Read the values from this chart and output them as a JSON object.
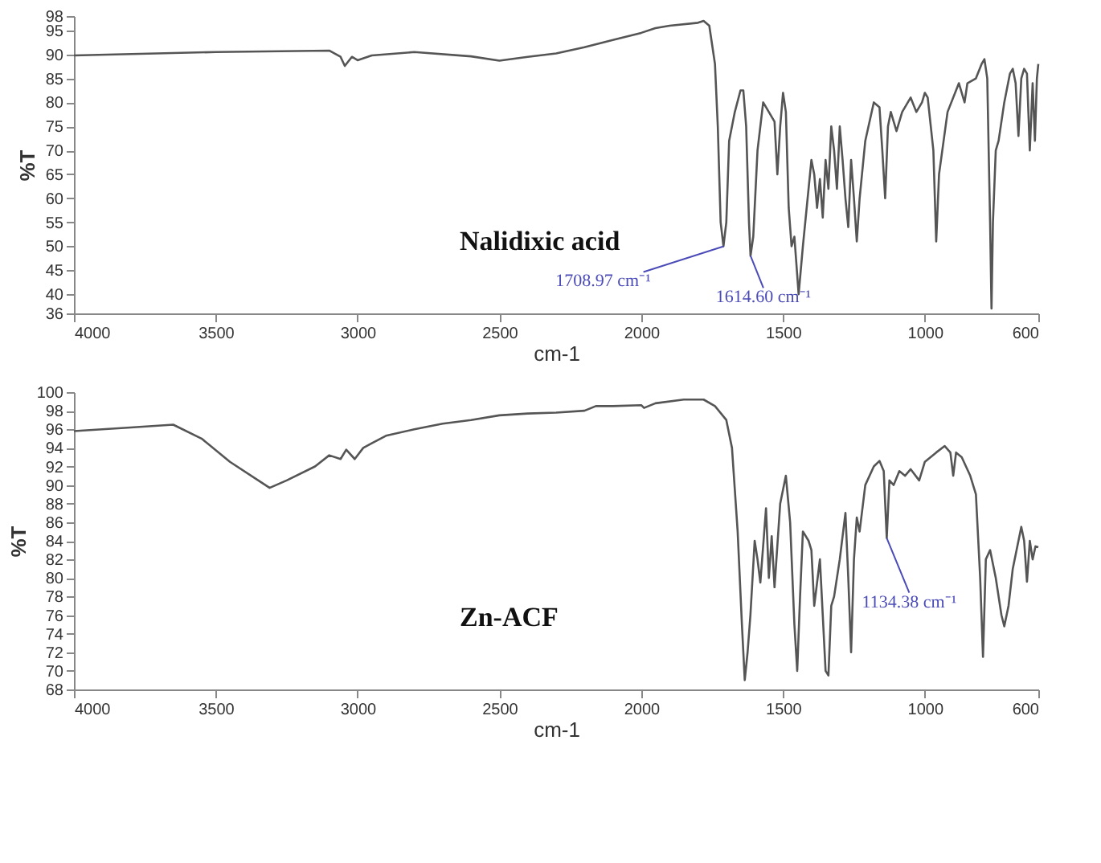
{
  "chart_data": [
    {
      "type": "line",
      "xlabel": "cm-1",
      "ylabel": "%T",
      "xlim": [
        4000,
        600
      ],
      "ylim": [
        36,
        98
      ],
      "xticks": [
        4000,
        3500,
        3000,
        2500,
        2000,
        1500,
        1000,
        600
      ],
      "yticks": [
        36,
        40,
        45,
        50,
        55,
        60,
        65,
        70,
        75,
        80,
        85,
        90,
        95,
        98
      ],
      "grid": false,
      "marker": "none",
      "line_style": "solid",
      "annotations": [
        {
          "text": "1708.97 cm⁻¹",
          "x": 1708.97,
          "y": 50
        },
        {
          "text": "1614.60 cm⁻¹",
          "x": 1614.6,
          "y": 48
        }
      ],
      "series": [
        {
          "name": "Nalidixic acid",
          "color": "#555555",
          "x": [
            4000,
            3500,
            3100,
            3060,
            3045,
            3020,
            3000,
            2950,
            2800,
            2600,
            2500,
            2400,
            2300,
            2200,
            2100,
            2000,
            1950,
            1900,
            1800,
            1780,
            1760,
            1750,
            1740,
            1730,
            1720,
            1710,
            1700,
            1690,
            1670,
            1650,
            1640,
            1630,
            1620,
            1614.6,
            1605,
            1590,
            1570,
            1550,
            1530,
            1520,
            1510,
            1500,
            1490,
            1480,
            1470,
            1460,
            1445,
            1430,
            1410,
            1400,
            1390,
            1380,
            1370,
            1360,
            1350,
            1340,
            1330,
            1320,
            1310,
            1300,
            1290,
            1280,
            1270,
            1260,
            1250,
            1240,
            1230,
            1210,
            1180,
            1160,
            1150,
            1140,
            1130,
            1120,
            1100,
            1080,
            1050,
            1030,
            1010,
            1000,
            990,
            970,
            960,
            950,
            920,
            880,
            860,
            850,
            820,
            800,
            790,
            780,
            770,
            765,
            760,
            750,
            740,
            720,
            700,
            690,
            680,
            670,
            660,
            650,
            640,
            630,
            620,
            612,
            605,
            600
          ],
          "values": [
            89.8,
            90.5,
            90.8,
            89.5,
            87.6,
            89.5,
            88.8,
            89.8,
            90.5,
            89.6,
            88.7,
            89.5,
            90.2,
            91.5,
            93,
            94.5,
            95.5,
            96,
            96.6,
            97,
            96,
            92,
            88,
            75,
            55,
            50,
            55,
            72,
            78,
            82.5,
            82.5,
            75,
            55,
            48,
            52,
            70,
            80,
            78,
            76,
            65,
            75,
            82,
            78,
            58,
            50,
            52,
            40,
            50,
            62,
            68,
            65,
            58,
            64,
            56,
            68,
            62,
            75,
            70,
            62,
            75,
            68,
            60,
            54,
            68,
            60,
            51,
            60,
            72,
            80,
            79,
            70,
            60,
            75,
            78,
            74,
            78,
            81,
            78,
            80,
            82,
            81,
            70,
            51,
            65,
            78,
            84,
            80,
            84,
            85,
            88,
            89,
            85,
            55,
            37,
            55,
            70,
            72,
            80,
            86,
            87,
            84,
            73,
            85,
            87,
            86,
            70,
            84,
            72,
            85,
            88
          ]
        }
      ]
    },
    {
      "type": "line",
      "xlabel": "cm-1",
      "ylabel": "%T",
      "xlim": [
        4000,
        600
      ],
      "ylim": [
        68,
        100
      ],
      "xticks": [
        4000,
        3500,
        3000,
        2500,
        2000,
        1500,
        1000,
        600
      ],
      "yticks": [
        68,
        70,
        72,
        74,
        76,
        78,
        80,
        82,
        84,
        86,
        88,
        90,
        92,
        94,
        96,
        98,
        100
      ],
      "grid": false,
      "marker": "none",
      "line_style": "solid",
      "annotations": [
        {
          "text": "1134.38 cm⁻¹",
          "x": 1134.38,
          "y": 84.3
        }
      ],
      "series": [
        {
          "name": "Zn-ACF",
          "color": "#555555",
          "x": [
            4000,
            3800,
            3650,
            3550,
            3450,
            3350,
            3310,
            3250,
            3150,
            3100,
            3060,
            3040,
            3010,
            2980,
            2950,
            2900,
            2800,
            2700,
            2600,
            2500,
            2400,
            2300,
            2200,
            2160,
            2100,
            2000,
            1990,
            1950,
            1850,
            1780,
            1740,
            1700,
            1680,
            1660,
            1645,
            1635,
            1625,
            1615,
            1600,
            1590,
            1580,
            1560,
            1550,
            1540,
            1530,
            1510,
            1490,
            1475,
            1460,
            1450,
            1440,
            1430,
            1410,
            1400,
            1390,
            1370,
            1350,
            1340,
            1330,
            1320,
            1300,
            1280,
            1270,
            1260,
            1250,
            1240,
            1230,
            1210,
            1180,
            1160,
            1145,
            1134.38,
            1125,
            1110,
            1090,
            1070,
            1050,
            1020,
            1000,
            960,
            930,
            910,
            900,
            890,
            870,
            840,
            820,
            805,
            795,
            785,
            770,
            750,
            730,
            720,
            705,
            690,
            670,
            660,
            650,
            640,
            630,
            620,
            610,
            600
          ],
          "values": [
            95.8,
            96.2,
            96.5,
            95,
            92.5,
            90.5,
            89.7,
            90.5,
            92,
            93.2,
            92.8,
            93.8,
            92.8,
            94,
            94.5,
            95.3,
            96,
            96.6,
            97,
            97.5,
            97.7,
            97.8,
            98,
            98.5,
            98.5,
            98.6,
            98.3,
            98.8,
            99.2,
            99.2,
            98.5,
            97,
            94,
            85,
            75,
            69,
            72,
            76,
            84,
            82,
            79.5,
            87.5,
            80,
            84.5,
            79,
            88,
            91,
            86,
            75,
            70,
            78,
            85,
            84,
            83,
            77,
            82,
            70,
            69.5,
            77,
            78,
            82,
            87,
            80,
            72,
            82,
            86.5,
            85,
            90,
            92,
            92.6,
            91.5,
            84.3,
            90.5,
            90,
            91.5,
            91,
            91.7,
            90.5,
            92.5,
            93.5,
            94.2,
            93.5,
            91,
            93.5,
            93,
            91,
            89,
            80,
            71.5,
            82,
            83,
            80,
            76,
            74.8,
            77,
            81,
            84,
            85.5,
            84,
            79.6,
            84,
            82,
            83.4,
            83.3
          ]
        }
      ]
    }
  ]
}
